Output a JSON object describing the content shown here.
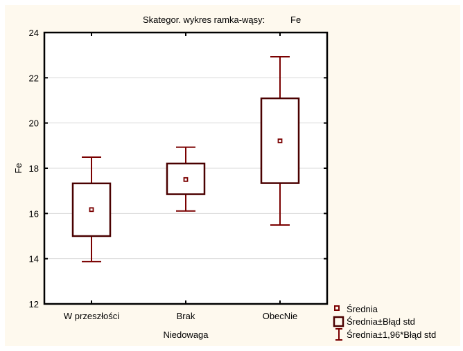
{
  "chart_data": {
    "type": "box",
    "title": "Skategor. wykres ramka-wąsy:",
    "variable": "Fe",
    "xlabel": "Niedowaga",
    "ylabel": "Fe",
    "ylim": [
      12,
      24
    ],
    "yticks": [
      12,
      14,
      16,
      18,
      20,
      22,
      24
    ],
    "grid": true,
    "categories": [
      "W przeszłości",
      "Brak",
      "ObecNie"
    ],
    "series": [
      {
        "name": "W przeszłości",
        "mean": 16.17,
        "box_low": 15.0,
        "box_high": 17.33,
        "whisker_low": 13.87,
        "whisker_high": 18.49
      },
      {
        "name": "Brak",
        "mean": 17.5,
        "box_low": 16.85,
        "box_high": 18.21,
        "whisker_low": 16.11,
        "whisker_high": 18.93
      },
      {
        "name": "ObecNie",
        "mean": 19.21,
        "box_low": 17.34,
        "box_high": 21.09,
        "whisker_low": 15.49,
        "whisker_high": 22.93
      }
    ],
    "legend": {
      "position": "bottom-right",
      "entries": [
        {
          "symbol": "mean-square",
          "label": "Średnia"
        },
        {
          "symbol": "box",
          "label": "Średnia±Błąd std"
        },
        {
          "symbol": "whisker",
          "label": "Średnia±1,96*Błąd std"
        }
      ]
    },
    "colors": {
      "background": "#fef9ee",
      "plot_background": "#ffffff",
      "box": "#4a0000",
      "whisker": "#7a0000",
      "mean": "#7a0000",
      "grid": "#d8d8d8",
      "frame": "#000000"
    }
  }
}
